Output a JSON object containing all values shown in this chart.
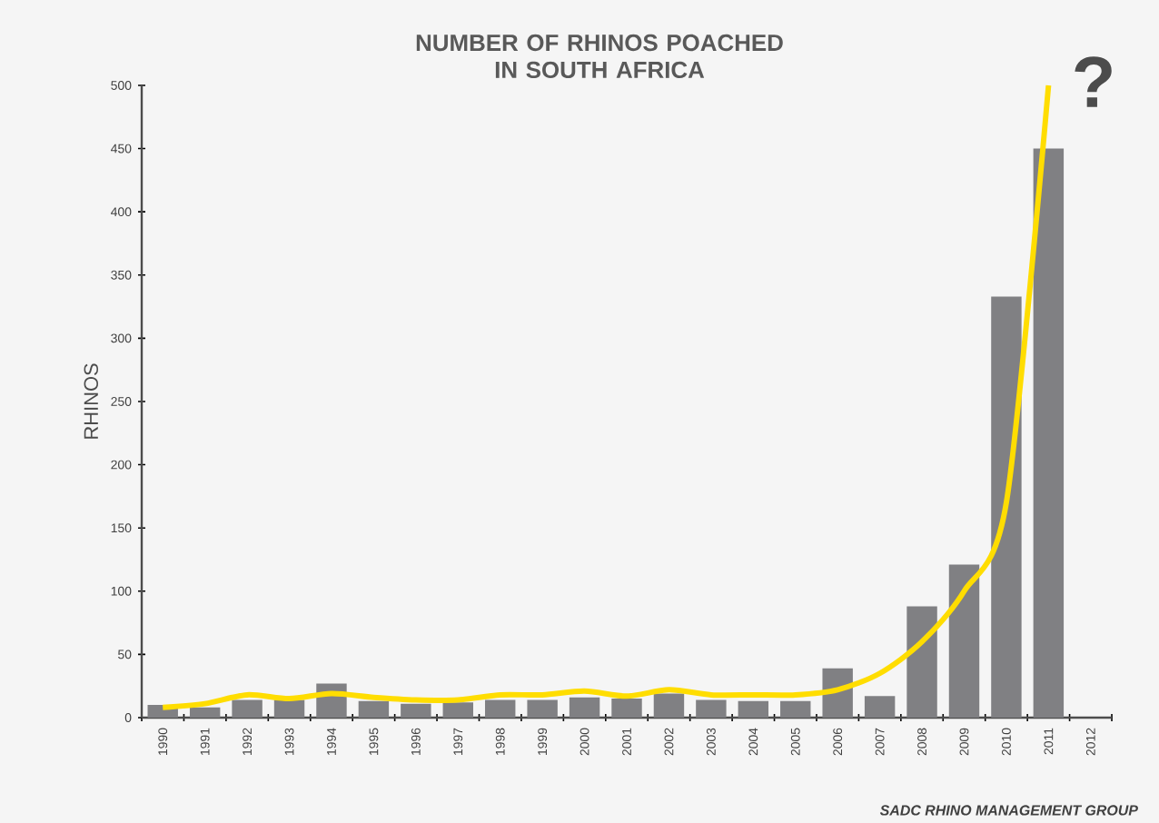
{
  "chart_data": {
    "type": "bar",
    "title": "NUMBER OF RHINOS POACHED\nIN SOUTH AFRICA",
    "ylabel": "RHINOS",
    "categories": [
      "1990",
      "1991",
      "1992",
      "1993",
      "1994",
      "1995",
      "1996",
      "1997",
      "1998",
      "1999",
      "2000",
      "2001",
      "2002",
      "2003",
      "2004",
      "2005",
      "2006",
      "2007",
      "2008",
      "2009",
      "2010",
      "2011",
      "2012"
    ],
    "series": [
      {
        "color": "#808083",
        "values": [
          10,
          8,
          14,
          14,
          27,
          13,
          11,
          12,
          14,
          14,
          16,
          15,
          19,
          14,
          13,
          13,
          39,
          17,
          88,
          121,
          333,
          450,
          null
        ]
      },
      {
        "type": "line",
        "color": "#ffdd00",
        "values": [
          8,
          11,
          18,
          15,
          19,
          16,
          14,
          14,
          18,
          18,
          21,
          17,
          22,
          18,
          18,
          18,
          22,
          35,
          60,
          100,
          170,
          500,
          null
        ]
      }
    ],
    "ylim": [
      0,
      500
    ],
    "yticks": [
      0,
      50,
      100,
      150,
      200,
      250,
      300,
      350,
      400,
      450,
      500
    ],
    "annotations": [
      "?",
      "SADC RHINO MANAGEMENT GROUP"
    ]
  }
}
